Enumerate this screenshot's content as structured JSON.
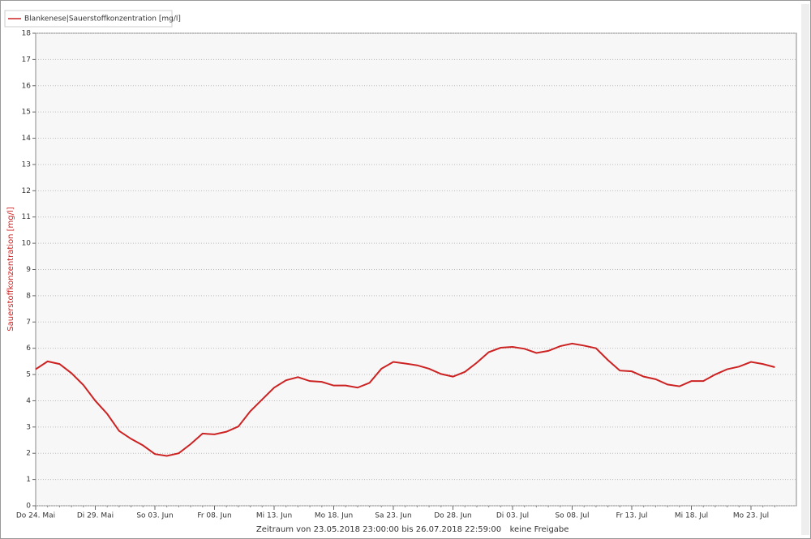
{
  "chart_data": {
    "type": "line",
    "legend_label": "Blankenese|Sauerstoffkonzentration [mg/l]",
    "y_label": "Sauerstoffkonzentration [mg/l]",
    "footer": "Zeitraum von 23.05.2018 23:00:00 bis 26.07.2018 22:59:00",
    "status": "keine Freigabe",
    "categories": [
      "Do 24. Mai",
      null,
      null,
      null,
      null,
      "Di 29. Mai",
      null,
      null,
      null,
      null,
      "So 03. Jun",
      null,
      null,
      null,
      null,
      "Fr 08. Jun",
      null,
      null,
      null,
      null,
      "Mi 13. Jun",
      null,
      null,
      null,
      null,
      "Mo 18. Jun",
      null,
      null,
      null,
      null,
      "Sa 23. Jun",
      null,
      null,
      null,
      null,
      "Do 28. Jun",
      null,
      null,
      null,
      null,
      "Di 03. Jul",
      null,
      null,
      null,
      null,
      "So 08. Jul",
      null,
      null,
      null,
      null,
      "Fr 13. Jul",
      null,
      null,
      null,
      null,
      "Mi 18. Jul",
      null,
      null,
      null,
      null,
      "Mo 23. Jul",
      null,
      null
    ],
    "series": [
      {
        "name": "Blankenese|Sauerstoffkonzentration [mg/l]",
        "color": "#cc2222",
        "values": [
          5.2,
          5.5,
          5.4,
          5.05,
          4.6,
          4.0,
          3.5,
          2.85,
          2.55,
          2.3,
          1.97,
          1.9,
          2.0,
          2.35,
          2.75,
          2.72,
          2.82,
          3.02,
          3.6,
          4.05,
          4.5,
          4.78,
          4.9,
          4.75,
          4.72,
          4.58,
          4.58,
          4.5,
          4.68,
          5.22,
          5.48,
          5.42,
          5.35,
          5.22,
          5.02,
          4.92,
          5.1,
          5.45,
          5.85,
          6.02,
          6.05,
          5.98,
          5.82,
          5.9,
          6.08,
          6.18,
          6.1,
          6.0,
          5.55,
          5.15,
          5.12,
          4.92,
          4.82,
          4.62,
          4.55,
          4.75,
          4.75,
          5.0,
          5.2,
          5.3,
          5.48,
          5.4,
          5.28
        ]
      }
    ],
    "ylim": [
      0,
      18
    ],
    "yticks": [
      0,
      1,
      2,
      3,
      4,
      5,
      6,
      7,
      8,
      9,
      10,
      11,
      12,
      13,
      14,
      15,
      16,
      17,
      18
    ],
    "grid": true
  }
}
